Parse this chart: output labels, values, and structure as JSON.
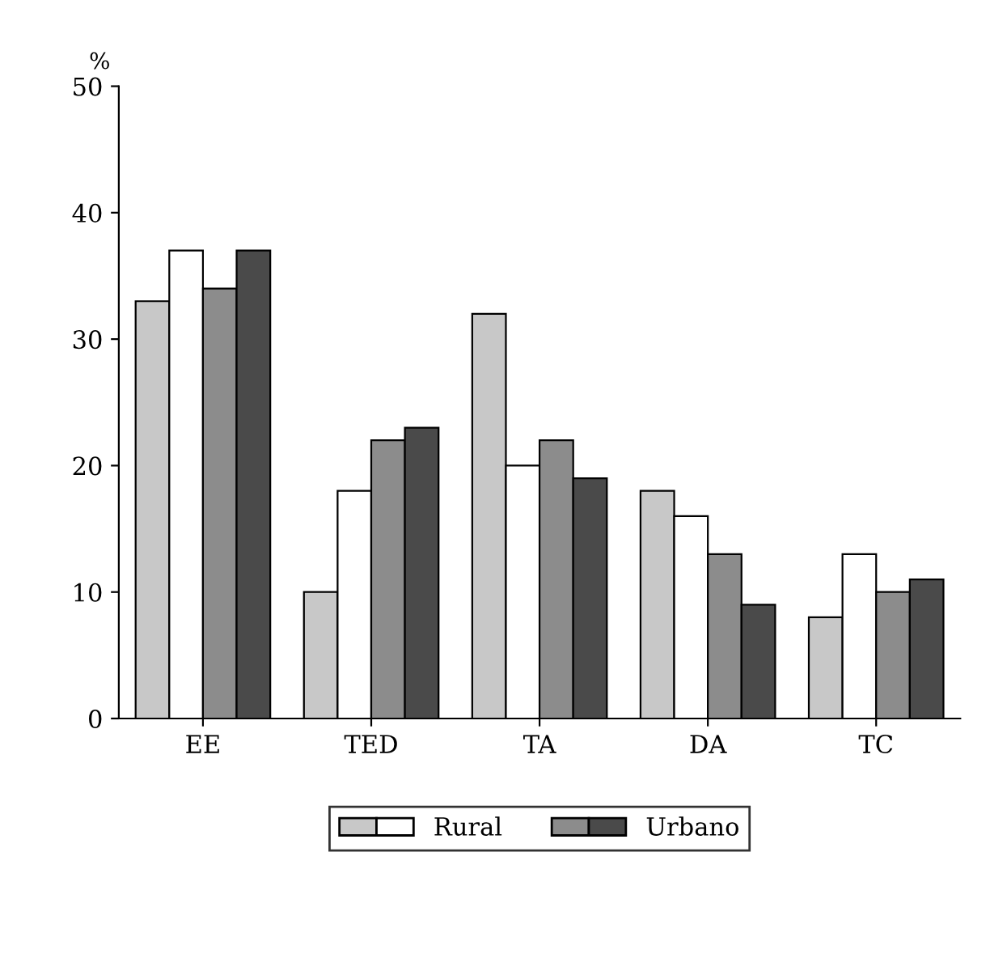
{
  "chart_data": {
    "type": "bar",
    "ylabel": "%",
    "categories": [
      "EE",
      "TED",
      "TA",
      "DA",
      "TC"
    ],
    "series": [
      {
        "name": "Rural",
        "color": "#c8c8c8",
        "values": [
          33,
          10,
          32,
          18,
          8
        ]
      },
      {
        "color": "#ffffff",
        "values": [
          37,
          18,
          20,
          16,
          13
        ]
      },
      {
        "name": "Urbano",
        "color": "#8c8c8c",
        "values": [
          34,
          22,
          22,
          13,
          10
        ]
      },
      {
        "color": "#4a4a4a",
        "values": [
          37,
          23,
          19,
          9,
          11
        ]
      }
    ],
    "ylim": [
      0,
      50
    ],
    "yticks": [
      0,
      10,
      20,
      30,
      40,
      50
    ],
    "grid": false,
    "legend": "bottom"
  }
}
